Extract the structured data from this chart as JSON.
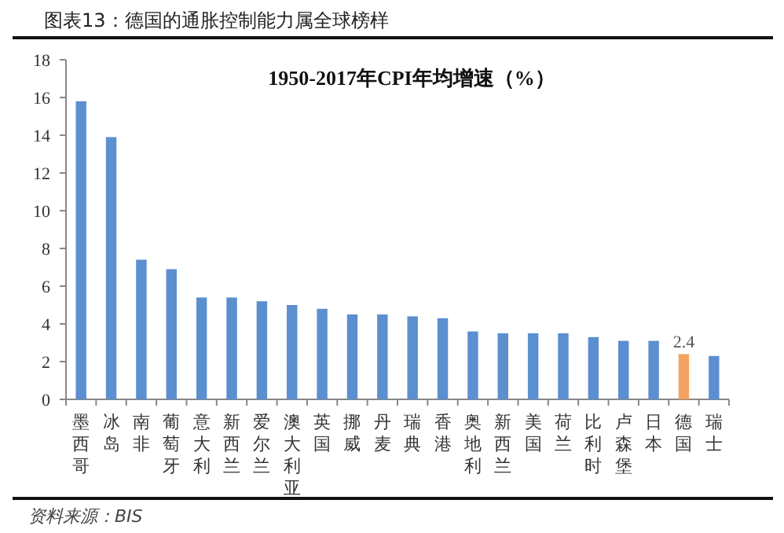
{
  "chart_data": {
    "type": "bar",
    "title": "图表13：德国的通胀控制能力属全球榜样",
    "subtitle": "1950-2017年CPI年均增速（%）",
    "categories": [
      "墨西哥",
      "冰岛",
      "南非",
      "葡萄牙",
      "意大利",
      "新西兰",
      "爱尔兰",
      "澳大利亚",
      "英国",
      "挪威",
      "丹麦",
      "瑞典",
      "香港",
      "奥地利",
      "新西兰",
      "美国",
      "荷兰",
      "比利时",
      "卢森堡",
      "日本",
      "德国",
      "瑞士"
    ],
    "values": [
      15.8,
      13.9,
      7.4,
      6.9,
      5.4,
      5.4,
      5.2,
      5.0,
      4.8,
      4.5,
      4.5,
      4.4,
      4.3,
      3.6,
      3.5,
      3.5,
      3.5,
      3.3,
      3.1,
      3.1,
      2.4,
      2.3
    ],
    "colors": [
      "#5b8fd0",
      "#5b8fd0",
      "#5b8fd0",
      "#5b8fd0",
      "#5b8fd0",
      "#5b8fd0",
      "#5b8fd0",
      "#5b8fd0",
      "#5b8fd0",
      "#5b8fd0",
      "#5b8fd0",
      "#5b8fd0",
      "#5b8fd0",
      "#5b8fd0",
      "#5b8fd0",
      "#5b8fd0",
      "#5b8fd0",
      "#5b8fd0",
      "#5b8fd0",
      "#5b8fd0",
      "#f4a261",
      "#5b8fd0"
    ],
    "value_labels": [
      null,
      null,
      null,
      null,
      null,
      null,
      null,
      null,
      null,
      null,
      null,
      null,
      null,
      null,
      null,
      null,
      null,
      null,
      null,
      null,
      "2.4",
      null
    ],
    "ylim": [
      0,
      18
    ],
    "yticks": [
      0,
      2,
      4,
      6,
      8,
      10,
      12,
      14,
      16,
      18
    ],
    "annotations": [
      "资料来源：BIS"
    ]
  }
}
